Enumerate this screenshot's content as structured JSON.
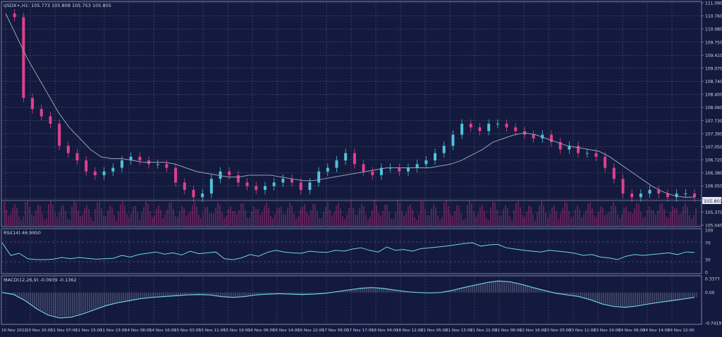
{
  "chart_data": [
    {
      "type": "candlestick",
      "title": "USDX+,H1: 105.773 105.808 105.753 105.805",
      "price_axis_ticks": [
        "111.090",
        "110.760",
        "110.080",
        "109.750",
        "109.410",
        "109.070",
        "108.740",
        "108.400",
        "108.060",
        "107.730",
        "107.390",
        "107.050",
        "106.720",
        "106.380",
        "106.050",
        "105.710",
        "105.370",
        "105.040"
      ],
      "current_price": "105.805",
      "ylim": [
        105.04,
        111.09
      ],
      "x_tick_labels": [
        "10 Nov 2022",
        "10 Nov 20:00",
        "11 Nov 07:00",
        "11 Nov 15:00",
        "11 Nov 23:00",
        "14 Nov 08:00",
        "14 Nov 16:00",
        "15 Nov 03:00",
        "15 Nov 11:00",
        "15 Nov 19:00",
        "16 Nov 06:00",
        "16 Nov 14:00",
        "16 Nov 22:00",
        "17 Nov 09:00",
        "17 Nov 17:00",
        "18 Nov 04:00",
        "18 Nov 12:00",
        "21 Nov 05:00",
        "21 Nov 13:00",
        "21 Nov 21:00",
        "22 Nov 08:00",
        "22 Nov 16:00",
        "23 Nov 03:00",
        "23 Nov 11:00",
        "23 Nov 19:00",
        "24 Nov 06:00",
        "24 Nov 14:00",
        "24 Nov 22:00"
      ],
      "close_path": [
        110.8,
        110.7,
        108.5,
        108.2,
        108.0,
        107.8,
        107.2,
        107.0,
        106.8,
        106.5,
        106.4,
        106.5,
        106.6,
        106.8,
        106.9,
        106.8,
        106.7,
        106.7,
        106.6,
        106.2,
        106.0,
        105.8,
        105.9,
        106.3,
        106.5,
        106.4,
        106.2,
        106.1,
        106.0,
        106.1,
        106.2,
        106.3,
        106.2,
        106.0,
        106.2,
        106.5,
        106.6,
        106.8,
        107.0,
        106.7,
        106.5,
        106.4,
        106.6,
        106.6,
        106.5,
        106.6,
        106.7,
        106.8,
        107.0,
        107.2,
        107.5,
        107.8,
        107.7,
        107.6,
        107.8,
        107.8,
        107.7,
        107.6,
        107.5,
        107.4,
        107.5,
        107.3,
        107.1,
        107.2,
        107.0,
        107.0,
        106.9,
        106.6,
        106.3,
        105.9,
        105.8,
        105.9,
        106.0,
        105.9,
        105.8,
        105.9,
        105.9,
        105.8
      ],
      "moving_average": [
        110.8,
        110.2,
        109.6,
        109.1,
        108.6,
        108.1,
        107.7,
        107.4,
        107.1,
        106.9,
        106.85,
        106.85,
        106.8,
        106.75,
        106.75,
        106.75,
        106.7,
        106.6,
        106.5,
        106.45,
        106.4,
        106.35,
        106.35,
        106.4,
        106.4,
        106.4,
        106.35,
        106.3,
        106.25,
        106.25,
        106.3,
        106.35,
        106.4,
        106.45,
        106.5,
        106.55,
        106.6,
        106.6,
        106.6,
        106.6,
        106.6,
        106.65,
        106.7,
        106.8,
        106.95,
        107.1,
        107.3,
        107.4,
        107.5,
        107.55,
        107.5,
        107.4,
        107.3,
        107.2,
        107.15,
        107.1,
        107.05,
        106.9,
        106.7,
        106.5,
        106.3,
        106.1,
        105.95,
        105.85,
        105.8,
        105.8
      ]
    },
    {
      "type": "line",
      "title": "RSI(14) 46.9950",
      "axis_ticks": [
        "100",
        "70",
        "30",
        "0"
      ],
      "ylim": [
        0,
        100
      ],
      "values": [
        70,
        40,
        45,
        32,
        30,
        30,
        31,
        35,
        32,
        35,
        33,
        31,
        32,
        33,
        40,
        36,
        42,
        45,
        48,
        43,
        46,
        41,
        50,
        44,
        46,
        48,
        32,
        30,
        34,
        42,
        38,
        47,
        52,
        48,
        46,
        45,
        50,
        48,
        47,
        52,
        50,
        55,
        58,
        52,
        48,
        60,
        52,
        54,
        50,
        56,
        58,
        60,
        62,
        65,
        68,
        70,
        62,
        65,
        66,
        58,
        55,
        52,
        50,
        48,
        52,
        50,
        48,
        45,
        40,
        42,
        36,
        34,
        30,
        38,
        42,
        40,
        42,
        44,
        46,
        42,
        48,
        47
      ]
    },
    {
      "type": "bar",
      "title": "MACD(12,26,9) -0.0939 -0.1362",
      "axis_ticks": [
        "0.3377",
        "0.00",
        "-0.7419"
      ],
      "ylim": [
        -0.7419,
        0.3377
      ],
      "signal_line": [
        0.0,
        -0.05,
        -0.2,
        -0.4,
        -0.55,
        -0.62,
        -0.6,
        -0.52,
        -0.42,
        -0.32,
        -0.25,
        -0.2,
        -0.15,
        -0.12,
        -0.1,
        -0.08,
        -0.06,
        -0.05,
        -0.06,
        -0.1,
        -0.12,
        -0.1,
        -0.06,
        -0.04,
        -0.03,
        -0.04,
        -0.05,
        -0.04,
        -0.02,
        0.02,
        0.06,
        0.1,
        0.12,
        0.1,
        0.06,
        0.02,
        0.0,
        -0.01,
        0.0,
        0.05,
        0.12,
        0.18,
        0.24,
        0.28,
        0.26,
        0.2,
        0.12,
        0.05,
        -0.02,
        -0.06,
        -0.1,
        -0.18,
        -0.28,
        -0.34,
        -0.36,
        -0.33,
        -0.28,
        -0.24,
        -0.2,
        -0.16,
        -0.12
      ]
    }
  ]
}
